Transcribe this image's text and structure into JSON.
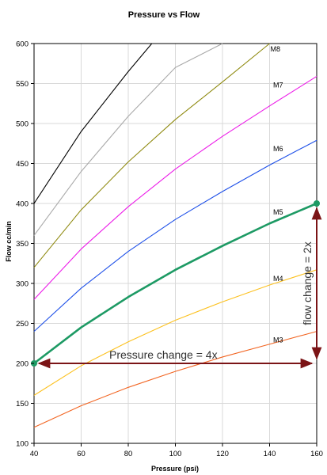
{
  "chart_data": {
    "type": "line",
    "title": "Pressure vs Flow",
    "xlabel": "Pressure (psi)",
    "ylabel": "Flow cc/min",
    "xlim": [
      40,
      160
    ],
    "ylim": [
      100,
      600
    ],
    "x_ticks": [
      "40",
      "60",
      "80",
      "100",
      "120",
      "140",
      "160"
    ],
    "y_ticks": [
      "100",
      "150",
      "200",
      "250",
      "300",
      "350",
      "400",
      "450",
      "500",
      "550",
      "600"
    ],
    "grid": true,
    "series": [
      {
        "label": "M3",
        "color": "#f26522",
        "x": [
          40,
          60,
          80,
          100,
          120,
          140,
          160
        ],
        "y": [
          120,
          147,
          170,
          190,
          208,
          224,
          240
        ]
      },
      {
        "label": "M4",
        "color": "#fcc11f",
        "x": [
          40,
          60,
          80,
          100,
          120,
          140,
          160
        ],
        "y": [
          160,
          197,
          227,
          254,
          277,
          298,
          317
        ]
      },
      {
        "label": "M5",
        "color": "#1d9a64",
        "x": [
          40,
          60,
          80,
          100,
          120,
          140,
          160
        ],
        "y": [
          200,
          245,
          283,
          317,
          347,
          375,
          400
        ]
      },
      {
        "label": "M6",
        "color": "#1d4fe8",
        "x": [
          40,
          60,
          80,
          100,
          120,
          140,
          160
        ],
        "y": [
          240,
          294,
          340,
          380,
          415,
          448,
          479
        ]
      },
      {
        "label": "M7",
        "color": "#ec1ce8",
        "x": [
          40,
          60,
          80,
          100,
          120,
          140,
          160
        ],
        "y": [
          280,
          343,
          396,
          443,
          484,
          522,
          559
        ]
      },
      {
        "label": "M8",
        "color": "#8f8a10",
        "x": [
          40,
          60,
          80,
          100,
          120,
          140
        ],
        "y": [
          320,
          392,
          452,
          505,
          552,
          600
        ]
      },
      {
        "label": "",
        "color": "#a9a9a9",
        "x": [
          40,
          60,
          80,
          100,
          120
        ],
        "y": [
          360,
          440,
          509,
          570,
          600
        ]
      },
      {
        "label": "",
        "color": "#000000",
        "x": [
          40,
          60,
          80,
          90
        ],
        "y": [
          400,
          490,
          565,
          600
        ]
      }
    ],
    "annotations": {
      "pressure_arrow": {
        "text": "Pressure change = 4x",
        "x_from": 40,
        "x_to": 160,
        "y": 200,
        "color": "#7b1416"
      },
      "flow_arrow": {
        "text": "flow change = 2x",
        "x": 160,
        "y_from": 200,
        "y_to": 400,
        "color": "#7b1416"
      },
      "points": [
        {
          "x": 40,
          "y": 200
        },
        {
          "x": 160,
          "y": 400
        }
      ],
      "point_color": "#1d9a64"
    }
  }
}
